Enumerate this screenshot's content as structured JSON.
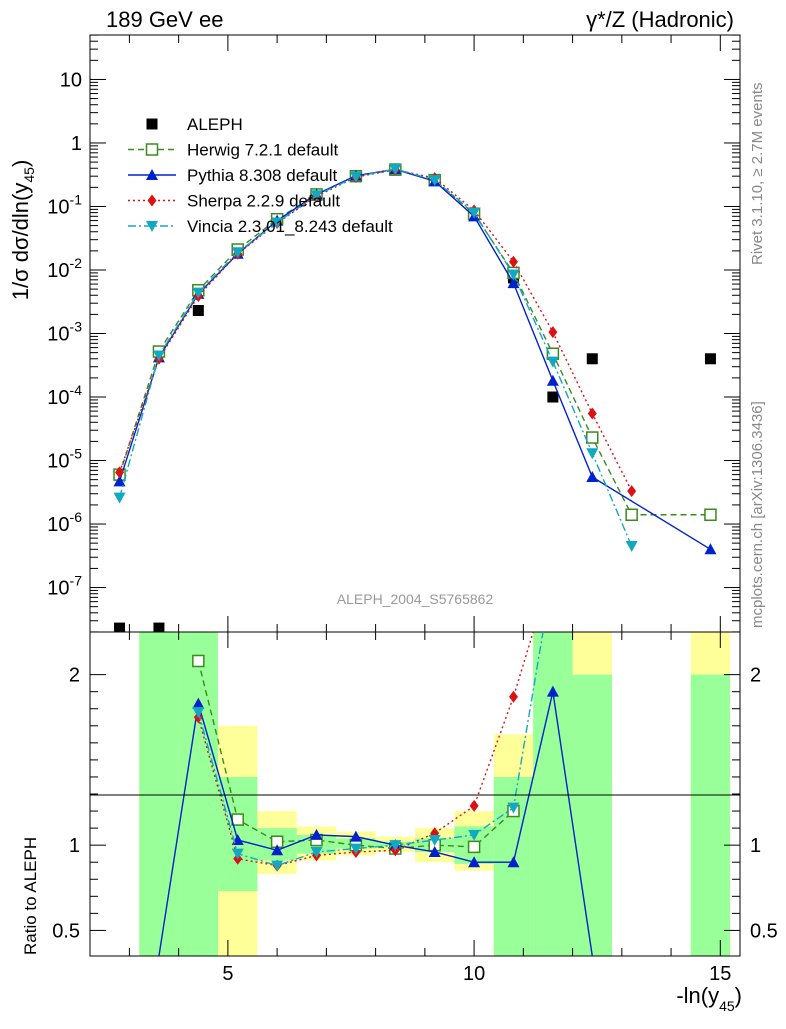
{
  "chart_data": {
    "type": "line",
    "title_left": "189 GeV ee",
    "title_right": "γ*/Z (Hadronic)",
    "ylabel": "1/σ  dσ/dln(y",
    "ylabel_sub": "45",
    "ylabel_close": ")",
    "xlabel": "-ln(y",
    "xlabel_sub": "45",
    "xlabel_close": ")",
    "ratio_ylabel": "Ratio to ALEPH",
    "analysis_label": "ALEPH_2004_S5765862",
    "side_label_top": "Rivet 3.1.10, ≥ 2.7M events",
    "side_label_bottom": "mcplots.cern.ch [arXiv:1306.3436]",
    "xlim": [
      2.2,
      15.4
    ],
    "ylim_main_log10": [
      -7.7,
      1.7
    ],
    "ylim_ratio": [
      0.35,
      2.25
    ],
    "y_scale_main": "log",
    "legend_position": "upper-left",
    "x_ticks": [
      "5",
      "10",
      "15"
    ],
    "y_ticks_main": [
      {
        "log": -7,
        "base": "10",
        "exp": "-7"
      },
      {
        "log": -6,
        "base": "10",
        "exp": "-6"
      },
      {
        "log": -5,
        "base": "10",
        "exp": "-5"
      },
      {
        "log": -4,
        "base": "10",
        "exp": "-4"
      },
      {
        "log": -3,
        "base": "10",
        "exp": "-3"
      },
      {
        "log": -2,
        "base": "10",
        "exp": "-2"
      },
      {
        "log": -1,
        "base": "10",
        "exp": "-1"
      },
      {
        "log": 0,
        "base": "1",
        "exp": ""
      },
      {
        "log": 1,
        "base": "10",
        "exp": ""
      }
    ],
    "y_ticks_ratio": [
      {
        "value": 0.5,
        "label": "0.5"
      },
      {
        "value": 1,
        "label": "1"
      },
      {
        "value": 2,
        "label": "2"
      }
    ],
    "bins": [
      [
        2.4,
        3.2
      ],
      [
        3.2,
        4.0
      ],
      [
        4.0,
        4.8
      ],
      [
        4.8,
        5.6
      ],
      [
        5.6,
        6.4
      ],
      [
        6.4,
        7.2
      ],
      [
        7.2,
        8.0
      ],
      [
        8.0,
        8.8
      ],
      [
        8.8,
        9.6
      ],
      [
        9.6,
        10.4
      ],
      [
        10.4,
        11.2
      ],
      [
        11.2,
        12.0
      ],
      [
        12.0,
        12.8
      ],
      [
        12.8,
        13.6
      ],
      [
        13.6,
        14.4
      ],
      [
        14.4,
        15.2
      ]
    ],
    "ratio_band_green": [
      null,
      [
        0.35,
        2.25
      ],
      [
        0.35,
        2.25
      ],
      [
        0.73,
        1.4
      ],
      [
        0.91,
        1.1
      ],
      [
        0.95,
        1.06
      ],
      [
        0.98,
        1.04
      ],
      [
        0.99,
        1.02
      ],
      [
        0.96,
        1.04
      ],
      [
        0.89,
        1.11
      ],
      [
        0.35,
        1.4
      ],
      [
        0.35,
        2.25
      ],
      [
        0.35,
        2.0
      ],
      null,
      null,
      [
        0.35,
        2.0
      ]
    ],
    "ratio_band_yellow": [
      null,
      [
        0.35,
        2.25
      ],
      [
        0.35,
        2.25
      ],
      [
        0.35,
        1.7
      ],
      [
        0.83,
        1.2
      ],
      [
        0.91,
        1.11
      ],
      [
        0.94,
        1.08
      ],
      [
        0.96,
        1.05
      ],
      [
        0.9,
        1.1
      ],
      [
        0.85,
        1.2
      ],
      [
        0.38,
        1.65
      ],
      [
        0.35,
        2.25
      ],
      [
        0.35,
        2.25
      ],
      null,
      null,
      [
        0.35,
        2.25
      ]
    ],
    "series": [
      {
        "name": "ALEPH",
        "kind": "data",
        "color": "#000000",
        "marker": "square",
        "x": [
          2.8,
          3.6,
          4.4,
          6.0,
          6.8,
          7.6,
          8.4,
          9.2,
          10.0,
          10.8,
          11.6,
          12.4,
          14.8
        ],
        "y": [
          2.3e-08,
          2.3e-08,
          0.0023,
          0.062,
          0.15,
          0.3,
          0.39,
          0.26,
          0.078,
          0.0075,
          0.0001,
          0.0004,
          0.0004
        ]
      },
      {
        "name": "Herwig 7.2.1 default",
        "kind": "mc",
        "color": "#3a8a1c",
        "marker": "open-square",
        "dash": "6,4",
        "x": [
          2.8,
          3.6,
          4.4,
          5.2,
          6.0,
          6.8,
          7.6,
          8.4,
          9.2,
          10.0,
          10.8,
          11.6,
          12.4,
          13.2,
          14.8
        ],
        "y": [
          6e-06,
          0.00052,
          0.0048,
          0.021,
          0.063,
          0.155,
          0.3,
          0.38,
          0.26,
          0.077,
          0.009,
          0.00048,
          2.3e-05,
          1.4e-06,
          1.4e-06
        ],
        "ratio_x": [
          4.4,
          5.2,
          6.0,
          6.8,
          7.6,
          8.4,
          9.2,
          10.0,
          10.8
        ],
        "ratio_y": [
          2.08,
          1.15,
          1.02,
          1.03,
          1.0,
          0.98,
          1.0,
          0.99,
          1.2
        ]
      },
      {
        "name": "Pythia 8.308 default",
        "kind": "mc",
        "color": "#0022cc",
        "marker": "triangle-up",
        "dash": "",
        "x": [
          2.8,
          3.6,
          4.4,
          5.2,
          6.0,
          6.8,
          7.6,
          8.4,
          9.2,
          10.0,
          10.8,
          11.6,
          12.4,
          14.8
        ],
        "y": [
          4.7e-06,
          0.00042,
          0.0042,
          0.018,
          0.06,
          0.155,
          0.305,
          0.385,
          0.25,
          0.07,
          0.0062,
          0.00018,
          5.5e-06,
          4e-07
        ],
        "ratio_x": [
          3.6,
          4.4,
          5.2,
          6.0,
          6.8,
          7.6,
          8.4,
          9.2,
          10.0,
          10.8,
          11.6,
          12.4
        ],
        "ratio_y": [
          0.35,
          1.83,
          1.03,
          0.97,
          1.06,
          1.05,
          1.0,
          0.96,
          0.9,
          0.9,
          1.9,
          0.35
        ]
      },
      {
        "name": "Sherpa 2.2.9 default",
        "kind": "mc",
        "color": "#dd1111",
        "marker": "diamond",
        "dash": "2,3",
        "x": [
          2.8,
          3.6,
          4.4,
          5.2,
          6.0,
          6.8,
          7.6,
          8.4,
          9.2,
          10.0,
          10.8,
          11.6,
          12.4,
          13.2
        ],
        "y": [
          6.5e-06,
          0.0004,
          0.0039,
          0.018,
          0.055,
          0.145,
          0.29,
          0.38,
          0.28,
          0.087,
          0.0135,
          0.00105,
          5.5e-05,
          3.3e-06
        ],
        "ratio_x": [
          4.4,
          5.2,
          6.0,
          6.8,
          7.6,
          8.4,
          9.2,
          10.0,
          10.8,
          11.2
        ],
        "ratio_y": [
          1.75,
          0.92,
          0.88,
          0.94,
          0.96,
          0.97,
          1.07,
          1.23,
          1.87,
          2.25
        ]
      },
      {
        "name": "Vincia 2.3.01_8.243 default",
        "kind": "mc",
        "color": "#11a8c2",
        "marker": "triangle-down",
        "dash": "8,3,2,3",
        "x": [
          2.8,
          3.6,
          4.4,
          5.2,
          6.0,
          6.8,
          7.6,
          8.4,
          9.2,
          10.0,
          10.8,
          11.6,
          12.4,
          13.2
        ],
        "y": [
          2.6e-06,
          0.00045,
          0.0044,
          0.019,
          0.056,
          0.15,
          0.295,
          0.39,
          0.26,
          0.08,
          0.0085,
          0.00036,
          1.3e-05,
          4.5e-07
        ],
        "ratio_x": [
          4.4,
          5.2,
          6.0,
          6.8,
          7.6,
          8.4,
          9.2,
          10.0,
          10.8,
          11.4
        ],
        "ratio_y": [
          1.78,
          0.95,
          0.88,
          0.96,
          0.98,
          1.0,
          1.03,
          1.06,
          1.22,
          2.25
        ]
      }
    ]
  }
}
